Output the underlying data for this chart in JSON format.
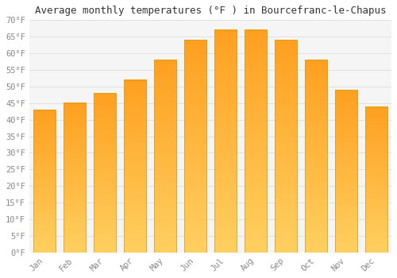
{
  "title": "Average monthly temperatures (°F ) in Bourcefranc-le-Chapus",
  "months": [
    "Jan",
    "Feb",
    "Mar",
    "Apr",
    "May",
    "Jun",
    "Jul",
    "Aug",
    "Sep",
    "Oct",
    "Nov",
    "Dec"
  ],
  "values": [
    43,
    45,
    48,
    52,
    58,
    64,
    67,
    67,
    64,
    58,
    49,
    44
  ],
  "bar_color_top": "#FFA020",
  "bar_color_bottom": "#FFD060",
  "bar_edge_color": "#CCA020",
  "ylim": [
    0,
    70
  ],
  "yticks": [
    0,
    5,
    10,
    15,
    20,
    25,
    30,
    35,
    40,
    45,
    50,
    55,
    60,
    65,
    70
  ],
  "background_color": "#FFFFFF",
  "plot_bg_color": "#F5F5F5",
  "grid_color": "#DDDDDD",
  "title_fontsize": 9,
  "tick_fontsize": 7.5,
  "font_family": "monospace"
}
